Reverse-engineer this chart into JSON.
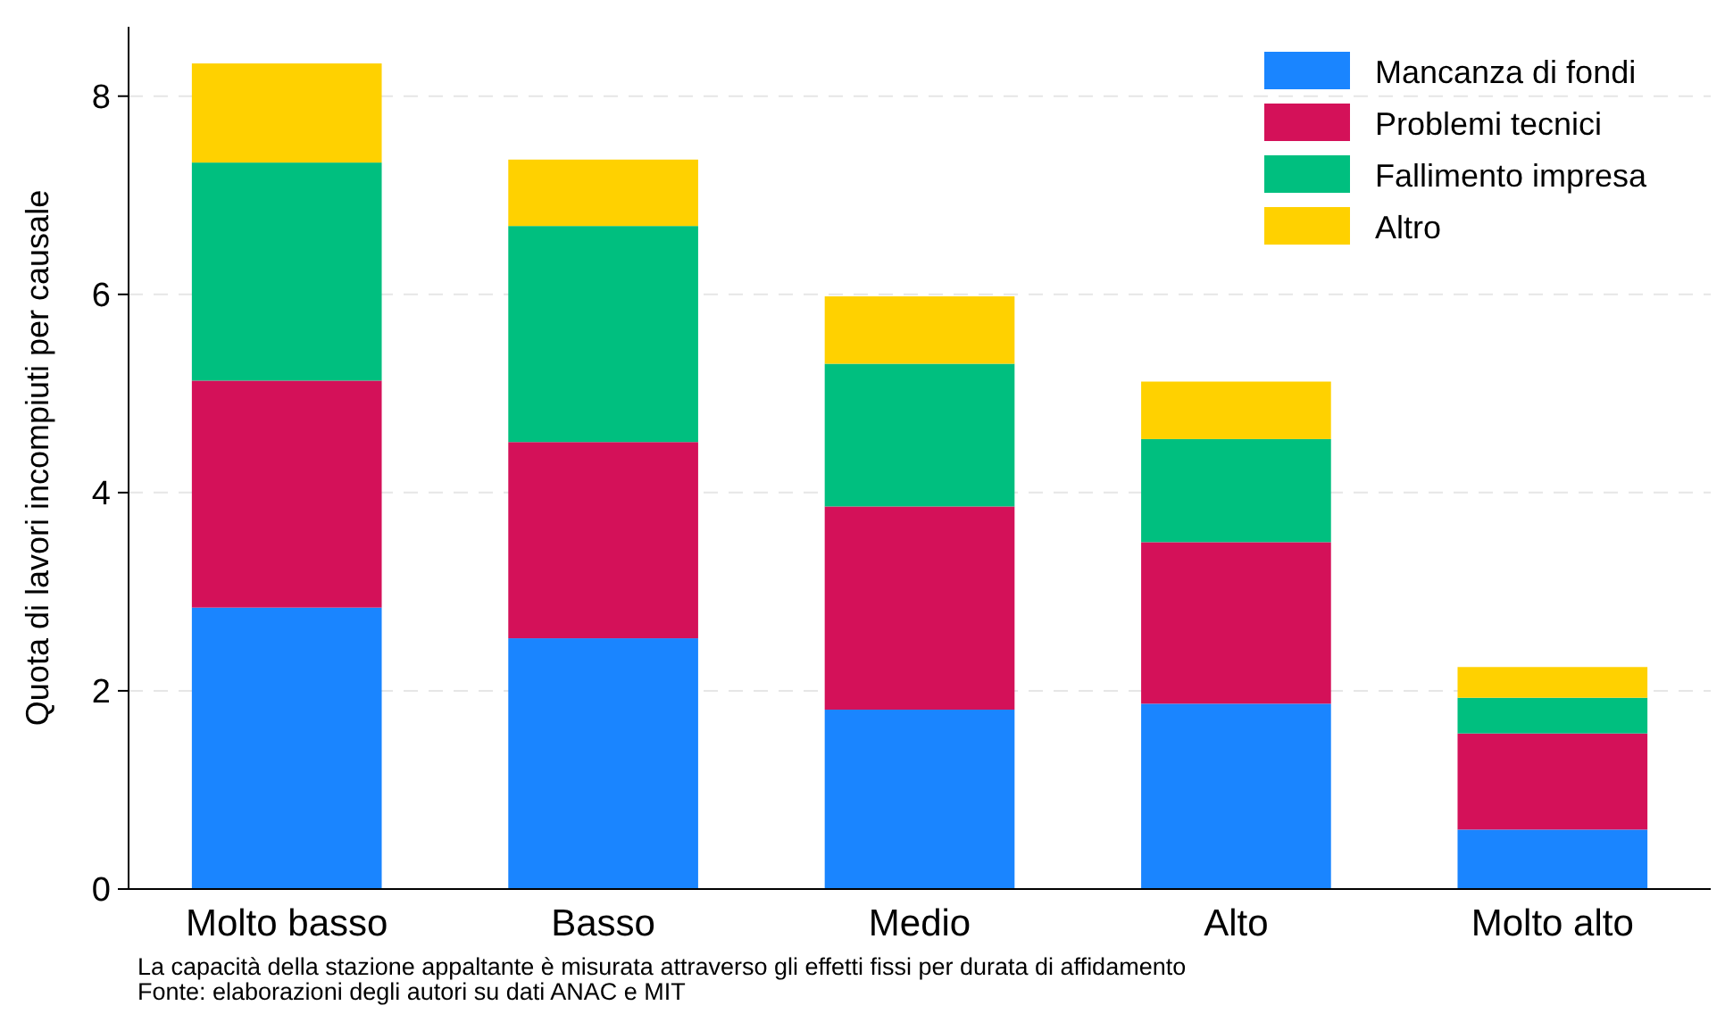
{
  "chart_data": {
    "type": "bar",
    "stacked": true,
    "ylabel": "Quota di lavori incompiuti per causale",
    "categories": [
      "Molto basso",
      "Basso",
      "Medio",
      "Alto",
      "Molto alto"
    ],
    "series": [
      {
        "name": "Mancanza di fondi",
        "color": "#1a85ff",
        "values": [
          2.84,
          2.53,
          1.81,
          1.87,
          0.6
        ]
      },
      {
        "name": "Problemi tecnici",
        "color": "#d41159",
        "values": [
          2.29,
          1.98,
          2.05,
          1.63,
          0.97
        ]
      },
      {
        "name": "Fallimento impresa",
        "color": "#00bf7f",
        "values": [
          2.2,
          2.18,
          1.44,
          1.04,
          0.36
        ]
      },
      {
        "name": "Altro",
        "color": "#ffd100",
        "values": [
          1.0,
          0.67,
          0.68,
          0.58,
          0.31
        ]
      }
    ],
    "ylim": [
      0,
      8.7
    ],
    "yticks": [
      0,
      2,
      4,
      6,
      8
    ],
    "grid": "y",
    "legend": "top right",
    "annotations": [
      "La capacità della stazione appaltante è misurata attraverso gli effetti fissi per durata di affidamento",
      "Fonte: elaborazioni degli autori su dati ANAC e MIT"
    ]
  }
}
